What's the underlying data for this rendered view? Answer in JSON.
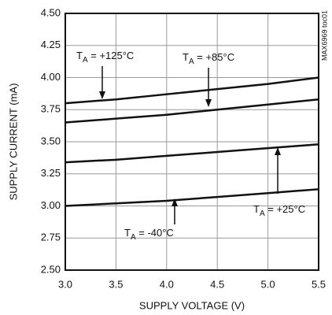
{
  "chart_data": {
    "type": "line",
    "x": [
      3.0,
      3.5,
      4.0,
      4.5,
      5.0,
      5.5
    ],
    "series": [
      {
        "name": "TA = +125°C",
        "color": "#111111",
        "values": [
          3.8,
          3.83,
          3.87,
          3.91,
          3.95,
          4.0
        ]
      },
      {
        "name": "TA = +85°C",
        "color": "#111111",
        "values": [
          3.65,
          3.68,
          3.71,
          3.75,
          3.79,
          3.83
        ]
      },
      {
        "name": "TA = +25°C",
        "color": "#111111",
        "values": [
          3.34,
          3.36,
          3.39,
          3.42,
          3.45,
          3.48
        ]
      },
      {
        "name": "TA = -40°C",
        "color": "#111111",
        "values": [
          3.0,
          3.02,
          3.04,
          3.07,
          3.1,
          3.13
        ]
      }
    ],
    "x_label": "SUPPLY VOLTAGE (V)",
    "y_label": "SUPPLY CURRENT (mA)",
    "side_note": "MAX6969 toc01",
    "xlim": [
      3.0,
      5.5
    ],
    "xticks": [
      {
        "value": 3,
        "label": "3.0"
      },
      3.5,
      {
        "value": 4,
        "label": "4.0"
      },
      4.5,
      {
        "value": 5,
        "label": "5.0"
      },
      5.5
    ],
    "ylim": [
      2.5,
      4.5
    ],
    "yticks": [
      {
        "value": 2.5,
        "label": "2.50"
      },
      2.75,
      {
        "value": 3,
        "label": "3.00"
      },
      3.25,
      {
        "value": 3.5,
        "label": "3.50"
      },
      3.75,
      {
        "value": 4,
        "label": "4.00"
      },
      4.25,
      {
        "value": 4.5,
        "label": "4.50"
      }
    ],
    "grid": true
  }
}
